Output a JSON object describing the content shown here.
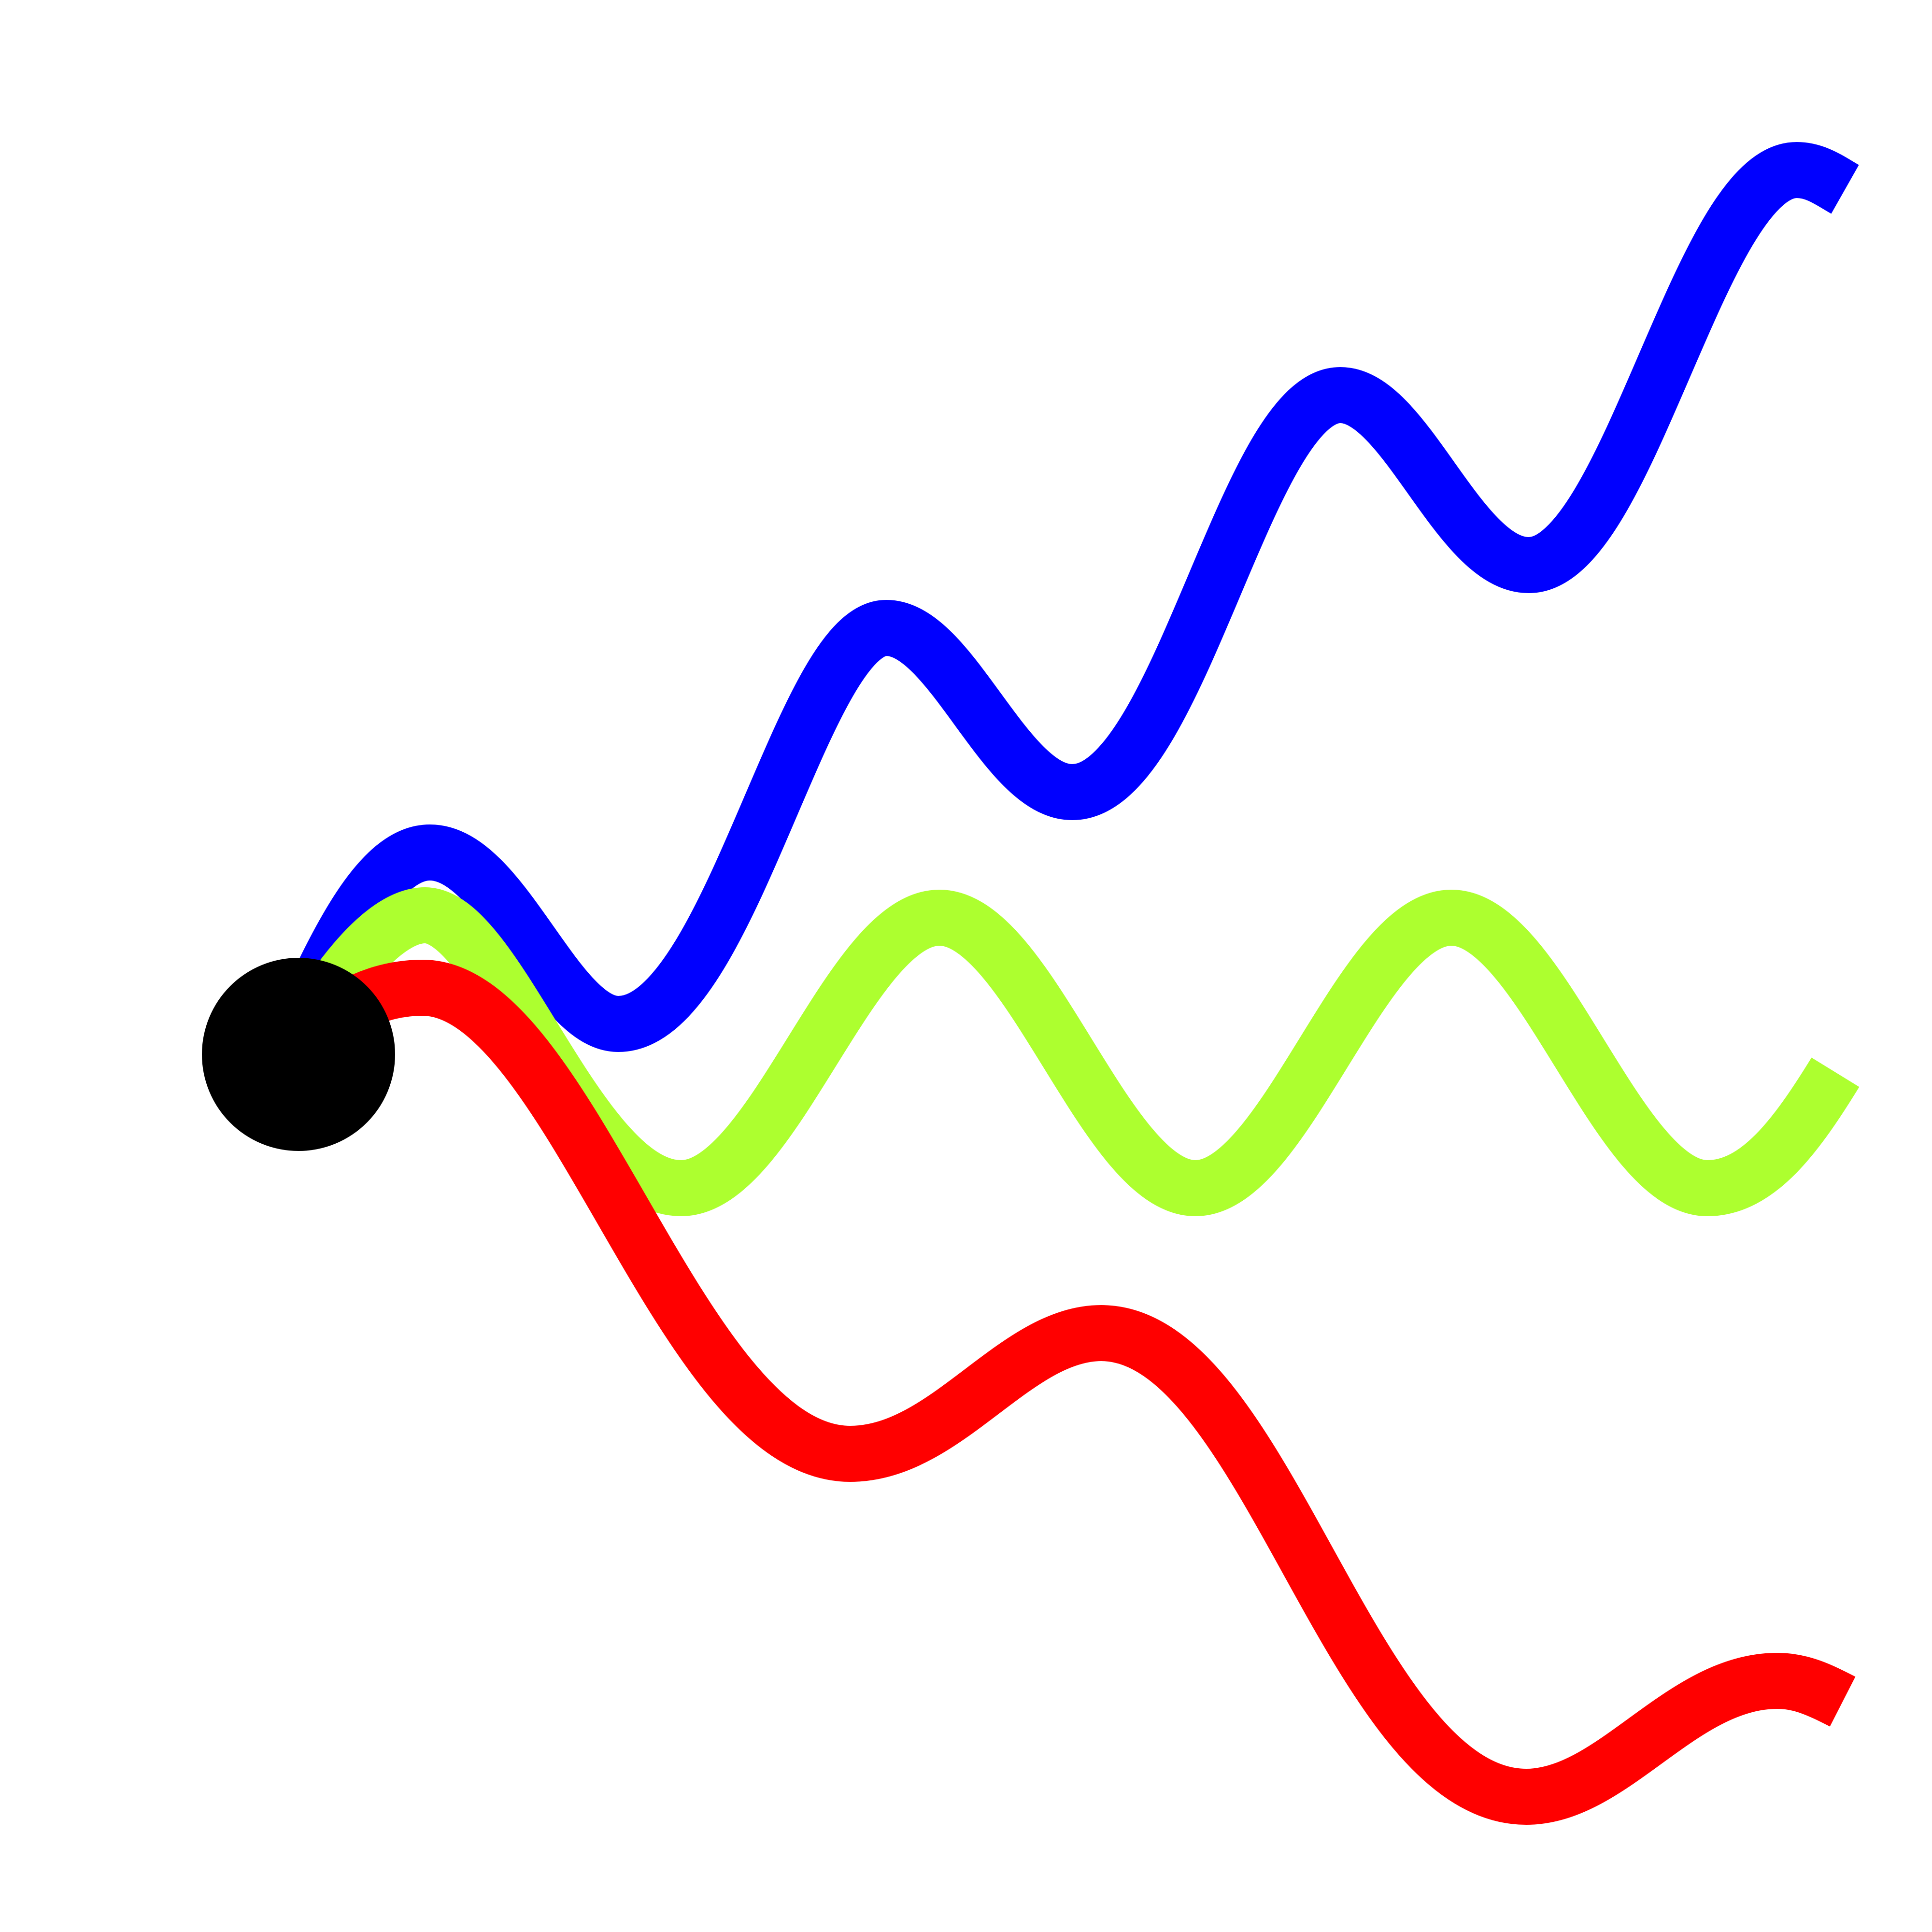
{
  "figure": {
    "background": "#ffffff",
    "shapes": [
      {
        "name": "blue-rising-wave",
        "color": "#0000ff"
      },
      {
        "name": "green-level-wave",
        "color": "#adff2f"
      },
      {
        "name": "red-falling-wave",
        "color": "#ff0000"
      },
      {
        "name": "origin-dot",
        "color": "#000000"
      }
    ]
  }
}
